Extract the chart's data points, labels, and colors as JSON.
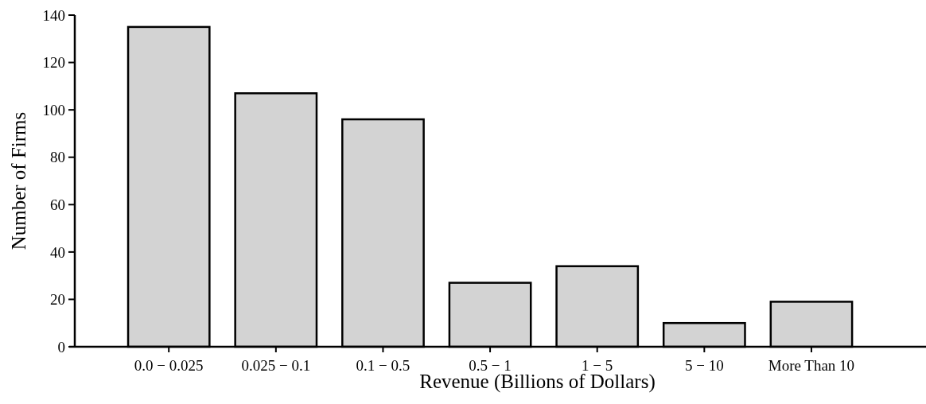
{
  "chart_data": {
    "type": "bar",
    "xlabel": "Revenue (Billions of Dollars)",
    "ylabel": "Number of Firms",
    "categories": [
      "0.0 − 0.025",
      "0.025 − 0.1",
      "0.1 − 0.5",
      "0.5 − 1",
      "1 − 5",
      "5 − 10",
      "More Than 10"
    ],
    "values": [
      135,
      107,
      96,
      27,
      34,
      10,
      19
    ],
    "color": "#d3d3d3",
    "ylim": [
      0,
      140
    ],
    "yticks": [
      0,
      20,
      40,
      60,
      80,
      100,
      120,
      140
    ],
    "grid": false
  }
}
